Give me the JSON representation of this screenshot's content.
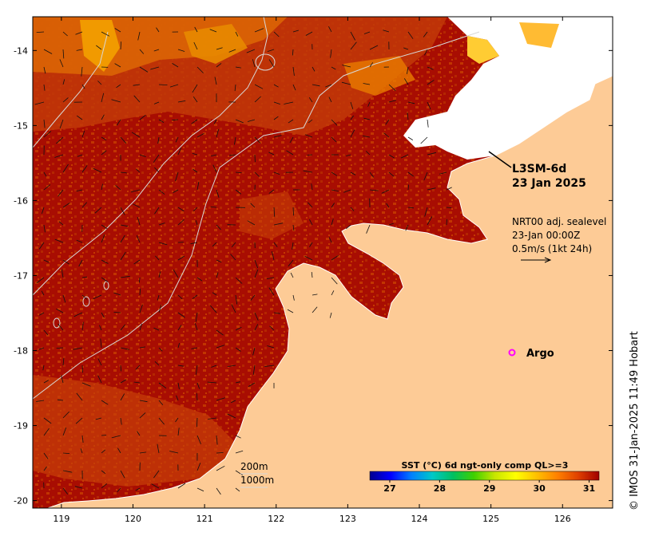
{
  "product": {
    "name": "L3SM-6d",
    "date": "23 Jan 2025"
  },
  "currents": {
    "line1": "NRT00 adj. sealevel",
    "line2": "23-Jan 00:00Z",
    "line3": "0.5m/s (1kt 24h)"
  },
  "argo": {
    "label": "Argo",
    "color": "#ff00ff"
  },
  "contours": {
    "shallow": "200m",
    "deep": "1000m"
  },
  "colorbar": {
    "title": "SST (°C) 6d ngt-only comp QL>=3",
    "ticks": [
      "27",
      "28",
      "29",
      "30",
      "31"
    ],
    "min": 26.6,
    "max": 31.2,
    "colors": [
      "#00008f",
      "#0000ff",
      "#0080ff",
      "#00c8c8",
      "#00c060",
      "#40d000",
      "#c8e600",
      "#ffff00",
      "#ffc000",
      "#ff8000",
      "#e04000",
      "#a00000"
    ]
  },
  "axes": {
    "lon_ticks": [
      "119",
      "120",
      "121",
      "122",
      "123",
      "124",
      "125",
      "126"
    ],
    "lat_ticks": [
      "-14",
      "-15",
      "-16",
      "-17",
      "-18",
      "-19",
      "-20"
    ],
    "lon_range": [
      118.6,
      126.7
    ],
    "lat_range": [
      -13.55,
      -20.1
    ]
  },
  "copyright": "© IMOS 31-Jan-2025 11:49 Hobart",
  "colors": {
    "land": "#fdcb96",
    "sea": "#a80d02",
    "no_data": "#ffffff"
  }
}
